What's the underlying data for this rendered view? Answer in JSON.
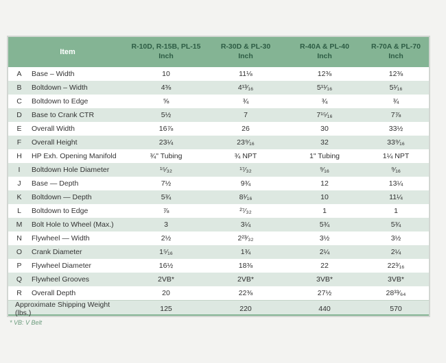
{
  "header": {
    "item_label": "Item",
    "columns": [
      {
        "name": "R-10D, R-15B, PL-15",
        "unit": "Inch"
      },
      {
        "name": "R-30D & PL-30",
        "unit": "Inch"
      },
      {
        "name": "R-40A & PL-40",
        "unit": "Inch"
      },
      {
        "name": "R-70A & PL-70",
        "unit": "Inch"
      }
    ]
  },
  "rows": [
    {
      "letter": "A",
      "item": "Base – Width",
      "values": [
        "10",
        "11⅛",
        "12⅜",
        "12⅜"
      ]
    },
    {
      "letter": "B",
      "item": "Boltdown – Width",
      "values": [
        "4⅜",
        "4¹³⁄₁₆",
        "5¹¹⁄₁₆",
        "5¹⁄₁₆"
      ]
    },
    {
      "letter": "C",
      "item": "Boltdown to Edge",
      "values": [
        "⅝",
        "¾",
        "¾",
        "¾"
      ]
    },
    {
      "letter": "D",
      "item": "Base to Crank CTR",
      "values": [
        "5½",
        "7",
        "7¹⁵⁄₁₆",
        "7⅞"
      ]
    },
    {
      "letter": "E",
      "item": "Overall Width",
      "values": [
        "16⅞",
        "26",
        "30",
        "33½"
      ]
    },
    {
      "letter": "F",
      "item": "Overall Height",
      "values": [
        "23¼",
        "23⁹⁄₁₆",
        "32",
        "33⁹⁄₁₆"
      ]
    },
    {
      "letter": "H",
      "item": "HP Exh. Opening Manifold",
      "values": [
        "¾\" Tubing",
        "¾ NPT",
        "1\" Tubing",
        "1¼ NPT"
      ]
    },
    {
      "letter": "I",
      "item": "Boltdown Hole Diameter",
      "values": [
        "¹⁵⁄₃₂",
        "¹⁷⁄₃₂",
        "⁹⁄₁₆",
        "⁹⁄₁₆"
      ]
    },
    {
      "letter": "J",
      "item": "Base — Depth",
      "values": [
        "7½",
        "9¾",
        "12",
        "13¼"
      ]
    },
    {
      "letter": "K",
      "item": "Boltdown — Depth",
      "values": [
        "5¾",
        "8¹⁄₁₆",
        "10",
        "11¼"
      ]
    },
    {
      "letter": "L",
      "item": "Boltdown to Edge",
      "values": [
        "⅞",
        "²⁷⁄₃₂",
        "1",
        "1"
      ]
    },
    {
      "letter": "M",
      "item": "Bolt Hole to Wheel (Max.)",
      "values": [
        "3",
        "3¼",
        "5¾",
        "5¾"
      ]
    },
    {
      "letter": "N",
      "item": "Flywheel — Width",
      "values": [
        "2½",
        "2²³⁄₃₂",
        "3½",
        "3½"
      ]
    },
    {
      "letter": "O",
      "item": "Crank Diameter",
      "values": [
        "1⁵⁄₁₆",
        "1¾",
        "2¼",
        "2¼"
      ]
    },
    {
      "letter": "P",
      "item": "Flywheel Diameter",
      "values": [
        "16½",
        "18⅜",
        "22",
        "22³⁄₁₆"
      ]
    },
    {
      "letter": "Q",
      "item": "Flywheel Grooves",
      "values": [
        "2VB*",
        "2VB*",
        "3VB*",
        "3VB*"
      ]
    },
    {
      "letter": "R",
      "item": "Overall Depth",
      "values": [
        "20",
        "22⅜",
        "27½",
        "28³³⁄₆₄"
      ]
    }
  ],
  "summary_row": {
    "label": "Approximate Shipping Weight (lbs.)",
    "values": [
      "125",
      "220",
      "440",
      "570"
    ]
  },
  "footnote": "* VB: V Belt",
  "colors": {
    "header_green": "#84b494",
    "header_text_dark_green": "#2d5c44",
    "row_tint": "#dde8e1",
    "footnote_green": "#6a9a7c"
  }
}
